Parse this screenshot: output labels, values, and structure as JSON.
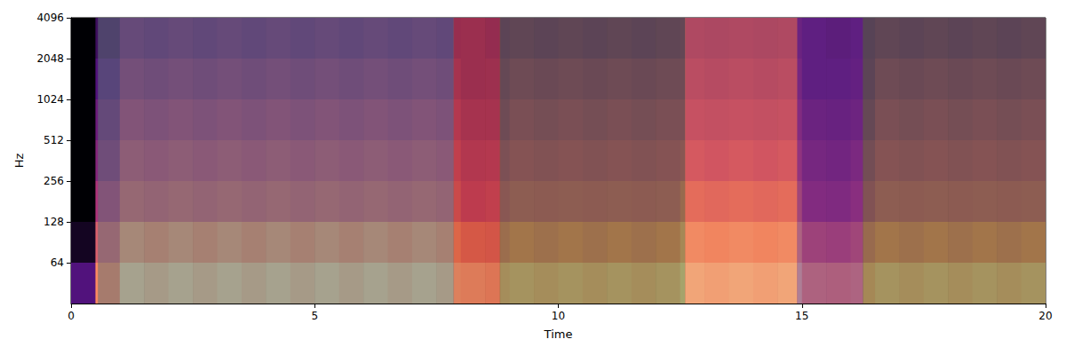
{
  "chart_data": {
    "type": "spectrogram",
    "x_label": "Time",
    "y_label": "Hz",
    "xlim": [
      0,
      20
    ],
    "xticks": [
      0,
      5,
      10,
      15,
      20
    ],
    "ylim": [
      32,
      4096
    ],
    "yticks": [
      64,
      128,
      256,
      512,
      1024,
      2048,
      4096
    ],
    "log": "y",
    "grid": false,
    "zlim": [
      -80,
      0
    ],
    "x_edges": [
      0,
      0.5,
      1,
      1.5,
      2,
      2.5,
      3,
      3.5,
      4,
      4.5,
      5,
      5.5,
      6,
      6.5,
      7,
      7.5,
      8,
      8.5,
      9,
      9.5,
      10,
      10.5,
      11,
      11.5,
      12,
      12.5,
      13,
      13.5,
      14,
      14.5,
      15,
      15.5,
      16,
      16.5,
      17,
      17.5,
      18,
      18.5,
      19,
      19.5,
      20
    ],
    "y_edges": [
      32,
      64,
      128,
      256,
      512,
      1024,
      2048,
      4096
    ],
    "cells": [
      [
        -60,
        -75,
        -80,
        -80,
        -80,
        -80,
        -80
      ],
      [
        -20,
        -30,
        -42,
        -50,
        -55,
        -60,
        -65
      ],
      [
        -5,
        -15,
        -30,
        -36,
        -42,
        -48,
        -54
      ],
      [
        -8,
        -18,
        -32,
        -38,
        -44,
        -50,
        -56
      ],
      [
        -5,
        -15,
        -30,
        -36,
        -42,
        -48,
        -54
      ],
      [
        -8,
        -18,
        -32,
        -38,
        -44,
        -50,
        -56
      ],
      [
        -5,
        -15,
        -30,
        -36,
        -42,
        -48,
        -54
      ],
      [
        -8,
        -18,
        -32,
        -38,
        -44,
        -50,
        -56
      ],
      [
        -5,
        -15,
        -30,
        -36,
        -42,
        -48,
        -54
      ],
      [
        -8,
        -18,
        -32,
        -38,
        -44,
        -50,
        -56
      ],
      [
        -5,
        -15,
        -30,
        -36,
        -42,
        -48,
        -54
      ],
      [
        -8,
        -18,
        -32,
        -38,
        -44,
        -50,
        -56
      ],
      [
        -5,
        -15,
        -30,
        -36,
        -42,
        -48,
        -54
      ],
      [
        -8,
        -18,
        -32,
        -38,
        -44,
        -50,
        -56
      ],
      [
        -5,
        -15,
        -30,
        -36,
        -42,
        -48,
        -54
      ],
      [
        -8,
        -18,
        -32,
        -38,
        -44,
        -50,
        -56
      ],
      [
        -10,
        -25,
        -40,
        -45,
        -50,
        -55,
        -55
      ],
      [
        -12,
        -26,
        -38,
        -44,
        -50,
        -54,
        -58
      ],
      [
        -10,
        -22,
        -35,
        -40,
        -45,
        -50,
        -56
      ],
      [
        -12,
        -25,
        -36,
        -42,
        -47,
        -52,
        -58
      ],
      [
        -10,
        -22,
        -35,
        -40,
        -45,
        -50,
        -56
      ],
      [
        -12,
        -25,
        -36,
        -42,
        -47,
        -52,
        -58
      ],
      [
        -10,
        -22,
        -35,
        -40,
        -45,
        -50,
        -56
      ],
      [
        -12,
        -25,
        -36,
        -42,
        -47,
        -52,
        -58
      ],
      [
        -10,
        -22,
        -35,
        -40,
        -45,
        -50,
        -56
      ],
      [
        -4,
        -14,
        -28,
        -38,
        -45,
        -50,
        -55
      ],
      [
        -6,
        -16,
        -30,
        -40,
        -46,
        -52,
        -56
      ],
      [
        -4,
        -14,
        -28,
        -38,
        -45,
        -50,
        -55
      ],
      [
        -6,
        -16,
        -30,
        -40,
        -46,
        -52,
        -56
      ],
      [
        -4,
        -14,
        -28,
        -38,
        -45,
        -50,
        -55
      ],
      [
        -15,
        -30,
        -45,
        -50,
        -55,
        -60,
        -60
      ],
      [
        -16,
        -32,
        -46,
        -52,
        -56,
        -60,
        -62
      ],
      [
        -14,
        -28,
        -42,
        -48,
        -54,
        -58,
        -60
      ],
      [
        -10,
        -22,
        -35,
        -40,
        -45,
        -50,
        -56
      ],
      [
        -12,
        -25,
        -36,
        -42,
        -47,
        -52,
        -58
      ],
      [
        -10,
        -22,
        -35,
        -40,
        -45,
        -50,
        -56
      ],
      [
        -12,
        -25,
        -36,
        -42,
        -47,
        -52,
        -58
      ],
      [
        -10,
        -22,
        -35,
        -40,
        -45,
        -50,
        -56
      ],
      [
        -12,
        -25,
        -36,
        -42,
        -47,
        -52,
        -58
      ],
      [
        -10,
        -22,
        -35,
        -40,
        -45,
        -50,
        -56
      ]
    ],
    "segments": [
      {
        "start": 0.55,
        "end": 7.85,
        "color": "#5e7079"
      },
      {
        "start": 7.85,
        "end": 8.8,
        "color": "#c2402c"
      },
      {
        "start": 8.8,
        "end": 12.6,
        "color": "#5c6b36"
      },
      {
        "start": 12.6,
        "end": 14.9,
        "color": "#e8704e"
      },
      {
        "start": 14.9,
        "end": 16.25,
        "color": "#6b2a85"
      },
      {
        "start": 16.25,
        "end": 20,
        "color": "#5c6b36"
      }
    ]
  }
}
